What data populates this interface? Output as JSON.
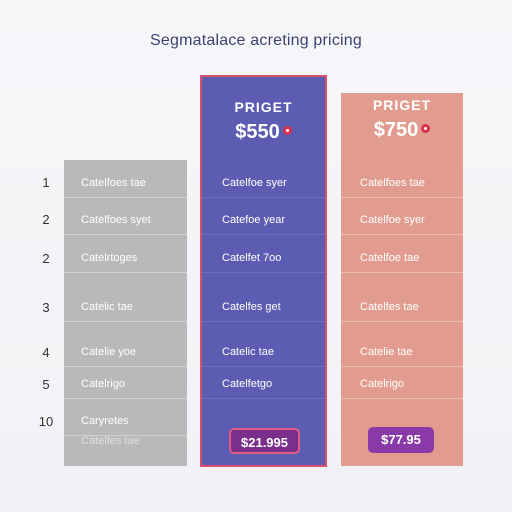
{
  "page": {
    "title": "Segmatalace acreting pricing"
  },
  "row_numbers": [
    "1",
    "2",
    "2",
    "3",
    "4",
    "5",
    "10"
  ],
  "plans": {
    "basic": {
      "features": [
        "Catelfoes tae",
        "Catelfoes syet",
        "Catelrtoges",
        "Catelic tae",
        "Catelie yoe",
        "Catelrigo",
        "Caryretes",
        "Catelfes tae"
      ]
    },
    "pro": {
      "name": "PRIGET",
      "price": "$550",
      "features": [
        "Catelfoe syer",
        "Catefoe year",
        "Catelfet 7oo",
        "Catelfes get",
        "Catelic tae",
        "Catelfetgo"
      ],
      "cta_label": "$21.995"
    },
    "premium": {
      "name": "PRIGET",
      "price": "$750",
      "features": [
        "Catelfoes tae",
        "Catelfoe syer",
        "Catelfoe tae",
        "Catelfes tae",
        "Catelie tae",
        "Catelrigo"
      ],
      "cta_label": "$77.95"
    }
  },
  "colors": {
    "title": "#3b4170",
    "basic_column": "#b9b9bb",
    "pro_column": "#5c5cb3",
    "pro_border": "#d9506a",
    "premium_column": "#e29c8f",
    "cta_purple": "#8a3aa8"
  }
}
